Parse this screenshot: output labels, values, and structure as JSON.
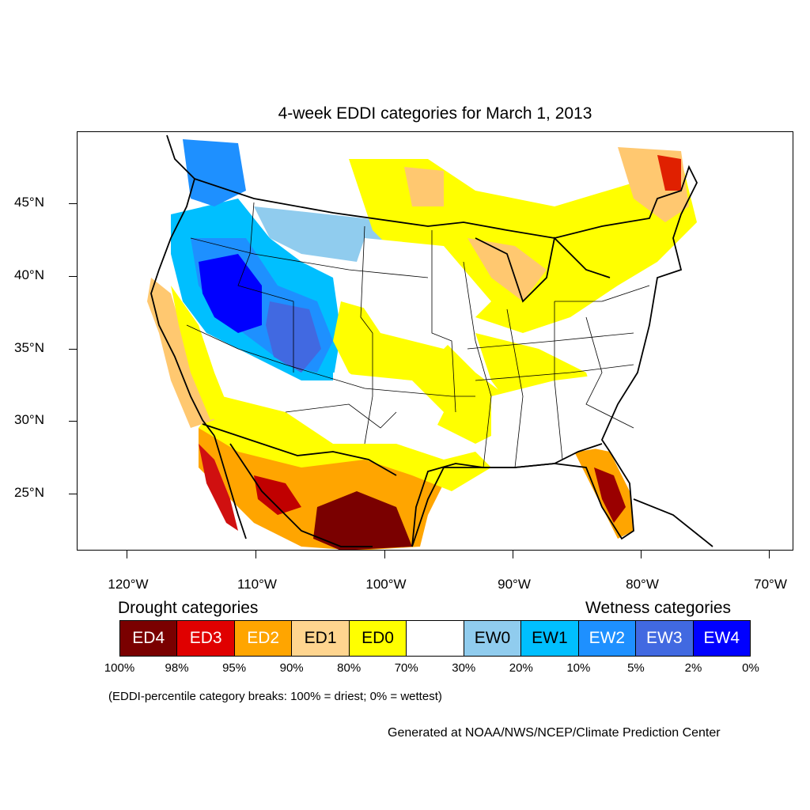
{
  "title": "4-week EDDI categories for March 1, 2013",
  "axes": {
    "y_labels": [
      "45°N",
      "40°N",
      "35°N",
      "30°N",
      "25°N"
    ],
    "x_labels": [
      "120°W",
      "110°W",
      "100°W",
      "90°W",
      "80°W",
      "70°W"
    ]
  },
  "legend": {
    "drought_heading": "Drought categories",
    "wetness_heading": "Wetness categories",
    "categories": [
      {
        "label": "ED4",
        "color": "#7a0000",
        "text_color": "#ffffff"
      },
      {
        "label": "ED3",
        "color": "#e00000",
        "text_color": "#ffffff"
      },
      {
        "label": "ED2",
        "color": "#ffa500",
        "text_color": "#ffffff"
      },
      {
        "label": "ED1",
        "color": "#ffd58f",
        "text_color": "#000000"
      },
      {
        "label": "ED0",
        "color": "#ffff00",
        "text_color": "#000000"
      },
      {
        "label": "",
        "color": "#ffffff",
        "text_color": "#000000"
      },
      {
        "label": "EW0",
        "color": "#90ccee",
        "text_color": "#000000"
      },
      {
        "label": "EW1",
        "color": "#00bfff",
        "text_color": "#000000"
      },
      {
        "label": "EW2",
        "color": "#1e90ff",
        "text_color": "#ffffff"
      },
      {
        "label": "EW3",
        "color": "#4169e1",
        "text_color": "#ffffff"
      },
      {
        "label": "EW4",
        "color": "#0000ff",
        "text_color": "#ffffff"
      }
    ],
    "breaks": [
      "100%",
      "98%",
      "95%",
      "90%",
      "80%",
      "70%",
      "30%",
      "20%",
      "10%",
      "5%",
      "2%",
      "0%"
    ]
  },
  "note": "(EDDI-percentile category breaks: 100% = driest; 0% = wettest)",
  "credit": "Generated at NOAA/NWS/NCEP/Climate Prediction Center"
}
